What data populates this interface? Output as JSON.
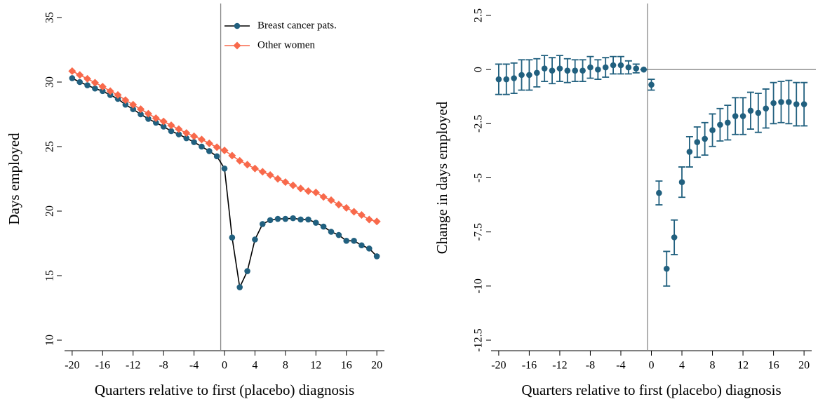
{
  "chart_data": [
    {
      "type": "line",
      "xlabel": "Quarters relative to first (placebo) diagnosis",
      "ylabel": "Days employed",
      "x": [
        -20,
        -19,
        -18,
        -17,
        -16,
        -15,
        -14,
        -13,
        -12,
        -11,
        -10,
        -9,
        -8,
        -7,
        -6,
        -5,
        -4,
        -3,
        -2,
        -1,
        0,
        1,
        2,
        3,
        4,
        5,
        6,
        7,
        8,
        9,
        10,
        11,
        12,
        13,
        14,
        15,
        16,
        17,
        18,
        19,
        20
      ],
      "xlim": [
        -21,
        21
      ],
      "xticks": [
        -20,
        -16,
        -12,
        -8,
        -4,
        0,
        4,
        8,
        12,
        16,
        20
      ],
      "ylim": [
        10,
        35
      ],
      "yticks": [
        10,
        15,
        20,
        25,
        30,
        35
      ],
      "vline": -0.5,
      "legend": "top",
      "series": [
        {
          "name": "Breast cancer pats.",
          "color": "#21607f",
          "line_color": "#000000",
          "marker": "circle",
          "values": [
            30.3,
            30.0,
            29.75,
            29.5,
            29.3,
            29.0,
            28.7,
            28.25,
            27.9,
            27.5,
            27.15,
            26.85,
            26.55,
            26.2,
            25.95,
            25.65,
            25.35,
            25.0,
            24.65,
            24.25,
            23.3,
            17.95,
            14.1,
            15.35,
            17.8,
            19.0,
            19.3,
            19.4,
            19.4,
            19.45,
            19.35,
            19.35,
            19.1,
            18.8,
            18.4,
            18.15,
            17.7,
            17.7,
            17.35,
            17.1,
            16.5
          ]
        },
        {
          "name": "Other women",
          "color": "#f8694b",
          "line_color": "#f8694b",
          "marker": "diamond",
          "values": [
            30.85,
            30.55,
            30.25,
            29.95,
            29.65,
            29.3,
            29.0,
            28.6,
            28.25,
            27.9,
            27.55,
            27.2,
            26.95,
            26.65,
            26.35,
            26.05,
            25.8,
            25.55,
            25.25,
            24.95,
            24.7,
            24.3,
            23.9,
            23.6,
            23.3,
            23.05,
            22.8,
            22.5,
            22.25,
            22.0,
            21.75,
            21.55,
            21.45,
            21.1,
            20.85,
            20.5,
            20.25,
            19.95,
            19.7,
            19.35,
            19.2
          ]
        }
      ]
    },
    {
      "type": "errorbar",
      "xlabel": "Quarters relative to first (placebo) diagnosis",
      "ylabel": "Change in days employed",
      "x": [
        -20,
        -19,
        -18,
        -17,
        -16,
        -15,
        -14,
        -13,
        -12,
        -11,
        -10,
        -9,
        -8,
        -7,
        -6,
        -5,
        -4,
        -3,
        -2,
        -1,
        0,
        1,
        2,
        3,
        4,
        5,
        6,
        7,
        8,
        9,
        10,
        11,
        12,
        13,
        14,
        15,
        16,
        17,
        18,
        19,
        20
      ],
      "xlim": [
        -21,
        21
      ],
      "xticks": [
        -20,
        -16,
        -12,
        -8,
        -4,
        0,
        4,
        8,
        12,
        16,
        20
      ],
      "ylim": [
        -12.5,
        2.5
      ],
      "yticks": [
        -12.5,
        -10,
        -7.5,
        -5,
        -2.5,
        0,
        2.5
      ],
      "vline": -0.5,
      "hline": 0,
      "color": "#21607f",
      "values": [
        -0.45,
        -0.45,
        -0.4,
        -0.25,
        -0.25,
        -0.15,
        0.05,
        -0.05,
        0.05,
        -0.05,
        -0.05,
        -0.05,
        0.1,
        0.0,
        0.1,
        0.2,
        0.2,
        0.1,
        0.05,
        0,
        -0.7,
        -5.7,
        -9.2,
        -7.75,
        -5.2,
        -3.8,
        -3.35,
        -3.2,
        -2.8,
        -2.55,
        -2.45,
        -2.15,
        -2.15,
        -1.9,
        -2.0,
        -1.8,
        -1.55,
        -1.5,
        -1.5,
        -1.6,
        -1.6
      ],
      "errors": [
        0.7,
        0.7,
        0.7,
        0.7,
        0.7,
        0.65,
        0.6,
        0.6,
        0.6,
        0.55,
        0.5,
        0.5,
        0.5,
        0.45,
        0.45,
        0.4,
        0.4,
        0.3,
        0.2,
        0,
        0.25,
        0.55,
        0.8,
        0.8,
        0.7,
        0.7,
        0.7,
        0.75,
        0.75,
        0.75,
        0.8,
        0.85,
        0.85,
        0.85,
        0.9,
        0.9,
        0.95,
        0.95,
        1.0,
        1.0,
        1.0
      ]
    }
  ]
}
